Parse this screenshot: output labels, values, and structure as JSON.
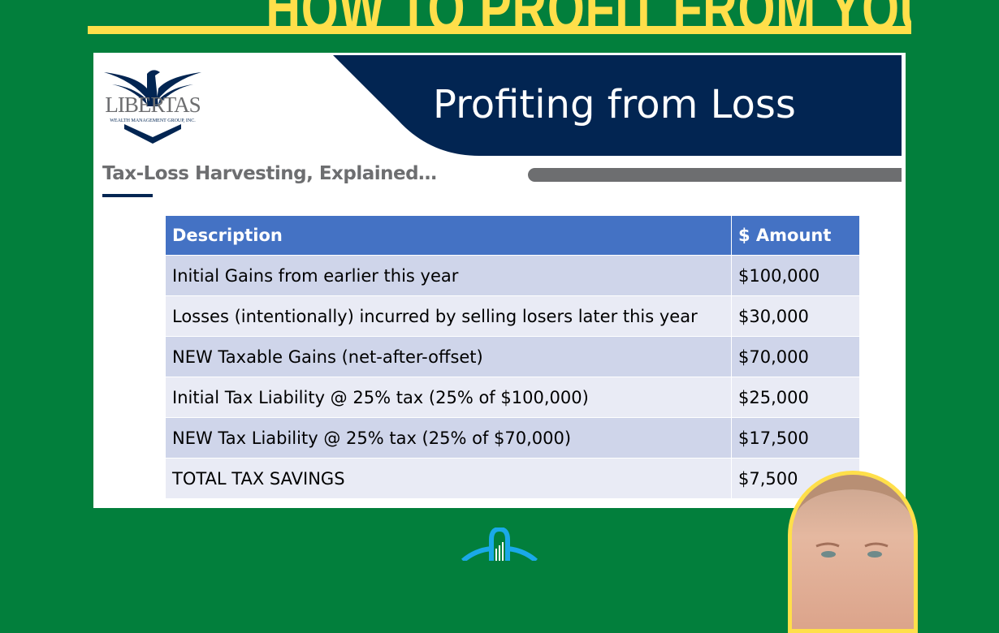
{
  "headline": "HOW TO PROFIT FROM YOUR LOSSES",
  "logo": {
    "name": "LIBERTAS",
    "tagline": "WEALTH MANAGEMENT GROUP, INC."
  },
  "banner_title": "Profiting from Loss",
  "subtitle": "Tax-Loss Harvesting, Explained…",
  "table": {
    "headers": [
      "Description",
      "$ Amount"
    ],
    "rows": [
      [
        "Initial Gains from earlier this year",
        "$100,000"
      ],
      [
        "Losses (intentionally) incurred by selling losers later this year",
        "$30,000"
      ],
      [
        "NEW Taxable Gains (net-after-offset)",
        "$70,000"
      ],
      [
        "Initial Tax Liability @ 25% tax (25% of $100,000)",
        "$25,000"
      ],
      [
        "NEW Tax Liability @ 25% tax (25% of $70,000)",
        "$17,500"
      ],
      [
        "TOTAL TAX SAVINGS",
        "$7,500"
      ]
    ]
  },
  "colors": {
    "background": "#027f3c",
    "headline": "#ffdf4a",
    "navy": "#022552",
    "table_header": "#4472c4"
  }
}
